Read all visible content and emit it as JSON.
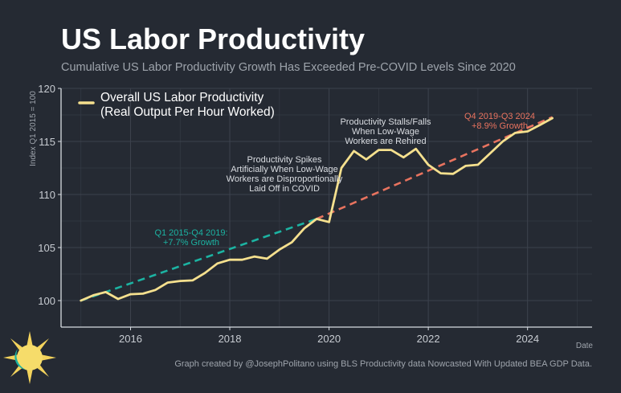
{
  "header": {
    "title": "US Labor Productivity",
    "subtitle": "Cumulative US Labor Productivity Growth Has Exceeded Pre-COVID Levels Since 2020"
  },
  "footer": {
    "credit": "Graph created by @JosephPolitano using BLS Productivity data Nowcasted With Updated BEA GDP Data."
  },
  "colors": {
    "background": "#252a33",
    "series": "#f5e08e",
    "pre_trend": "#1cb3a2",
    "post_trend": "#e8735f",
    "grid": "#343a44",
    "axis": "#d8dce2",
    "annotation": "#dadde2"
  },
  "chart_data": {
    "type": "line",
    "title": "US Labor Productivity",
    "xlabel": "Date",
    "ylabel": "Index Q1 2015 = 100",
    "xlim": [
      2014.6,
      2025.3
    ],
    "ylim": [
      97.5,
      120
    ],
    "x_ticks": [
      2016,
      2018,
      2020,
      2022,
      2024
    ],
    "x_tick_labels": [
      "2016",
      "2018",
      "2020",
      "2022",
      "2024"
    ],
    "y_ticks": [
      100,
      105,
      110,
      115,
      120
    ],
    "y_tick_labels": [
      "100",
      "105",
      "110",
      "115",
      "120"
    ],
    "legend": {
      "position": "top-left",
      "lines": [
        "Overall US Labor Productivity",
        "(Real Output Per Hour Worked)"
      ]
    },
    "series": [
      {
        "name": "Overall US Labor Productivity (Real Output Per Hour Worked)",
        "x": [
          2015.0,
          2015.25,
          2015.5,
          2015.75,
          2016.0,
          2016.25,
          2016.5,
          2016.75,
          2017.0,
          2017.25,
          2017.5,
          2017.75,
          2018.0,
          2018.25,
          2018.5,
          2018.75,
          2019.0,
          2019.25,
          2019.5,
          2019.75,
          2020.0,
          2020.25,
          2020.5,
          2020.75,
          2021.0,
          2021.25,
          2021.5,
          2021.75,
          2022.0,
          2022.25,
          2022.5,
          2022.75,
          2023.0,
          2023.25,
          2023.5,
          2023.75,
          2024.0,
          2024.25,
          2024.5
        ],
        "values": [
          100.0,
          100.5,
          100.8,
          100.15,
          100.6,
          100.65,
          101.0,
          101.7,
          101.85,
          101.9,
          102.6,
          103.5,
          103.85,
          103.85,
          104.15,
          103.95,
          104.8,
          105.5,
          106.8,
          107.7,
          107.4,
          112.5,
          114.1,
          113.3,
          114.2,
          114.2,
          113.5,
          114.3,
          112.8,
          112.0,
          111.95,
          112.7,
          112.8,
          113.9,
          115.0,
          115.8,
          115.95,
          116.55,
          117.2
        ]
      },
      {
        "name": "Q1 2015-Q4 2019 trend",
        "label_lines": [
          "Q1 2015-Q4 2019:",
          "+7.7% Growth"
        ],
        "dashed": true,
        "x": [
          2015.0,
          2019.75
        ],
        "values": [
          100.0,
          107.7
        ]
      },
      {
        "name": "Q4 2019-Q3 2024 trend",
        "label_lines": [
          "Q4 2019-Q3 2024",
          "+8.9% Growth"
        ],
        "dashed": true,
        "x": [
          2019.75,
          2024.5
        ],
        "values": [
          107.7,
          117.3
        ]
      }
    ],
    "annotations": [
      {
        "name": "covid-spike-annotation",
        "lines": [
          "Productivity Spikes",
          "Artificially When Low-Wage",
          "Workers are Disproportionally",
          "Laid Off in COVID"
        ]
      },
      {
        "name": "stall-annotation",
        "lines": [
          "Productivity Stalls/Falls",
          "When Low-Wage",
          "Workers are Rehired"
        ]
      }
    ]
  }
}
